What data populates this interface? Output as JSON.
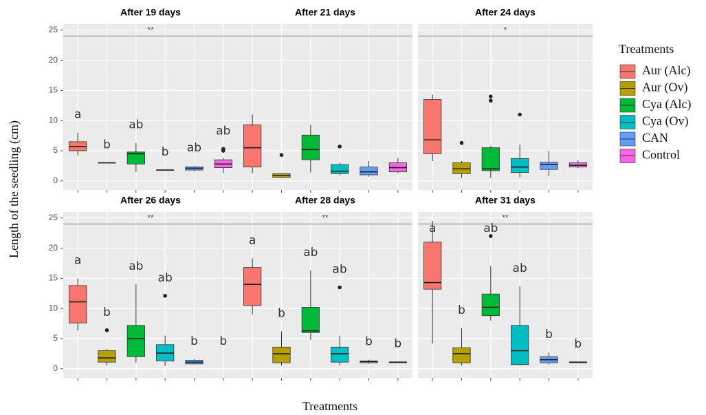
{
  "y_label": "Length of the seedling (cm)",
  "x_label": "Treatments",
  "legend": {
    "title": "Treatments",
    "items": [
      {
        "name": "Aur (Alc)",
        "color": "#f8766d"
      },
      {
        "name": "Aur (Ov)",
        "color": "#b79f00"
      },
      {
        "name": "Cya (Alc)",
        "color": "#00ba38"
      },
      {
        "name": "Cya (Ov)",
        "color": "#00bfc4"
      },
      {
        "name": "CAN",
        "color": "#619cff"
      },
      {
        "name": "Control",
        "color": "#f564e3"
      }
    ]
  },
  "chart_data": [
    {
      "type": "box",
      "title": "After 19 days",
      "significance": "**",
      "hline": 24,
      "ylim": [
        -1.5,
        26
      ],
      "yticks": [
        0,
        5,
        10,
        15,
        20,
        25
      ],
      "boxes": [
        {
          "min": 4.3,
          "q1": 5,
          "median": 5.7,
          "q3": 6.5,
          "max": 8,
          "outliers": [],
          "label": "a"
        },
        {
          "min": 3,
          "q1": 3,
          "median": 3,
          "q3": 3,
          "max": 3,
          "outliers": [],
          "label": "b"
        },
        {
          "min": 1.5,
          "q1": 2.8,
          "median": 4.5,
          "q3": 4.8,
          "max": 6.3,
          "outliers": [],
          "label": "ab"
        },
        {
          "min": 1.8,
          "q1": 1.8,
          "median": 1.8,
          "q3": 1.8,
          "max": 1.8,
          "outliers": [],
          "label": "b"
        },
        {
          "min": 1.6,
          "q1": 1.8,
          "median": 2.1,
          "q3": 2.3,
          "max": 2.5,
          "outliers": [],
          "label": "ab"
        },
        {
          "min": 1.3,
          "q1": 2.2,
          "median": 2.8,
          "q3": 3.5,
          "max": 3.8,
          "outliers": [
            5,
            5.3
          ],
          "label": "ab"
        }
      ]
    },
    {
      "type": "box",
      "title": "After 21 days",
      "hline": 24,
      "ylim": [
        -1.5,
        26
      ],
      "yticks": [
        0,
        5,
        10,
        15,
        20,
        25
      ],
      "boxes": [
        {
          "min": 1.3,
          "q1": 2.3,
          "median": 5.5,
          "q3": 9.3,
          "max": 11,
          "outliers": []
        },
        {
          "min": 0.5,
          "q1": 0.6,
          "median": 0.9,
          "q3": 1.2,
          "max": 1.3,
          "outliers": [
            4.3
          ]
        },
        {
          "min": 1.4,
          "q1": 3.5,
          "median": 5.2,
          "q3": 7.6,
          "max": 9.3,
          "outliers": []
        },
        {
          "min": 0.9,
          "q1": 1.2,
          "median": 1.6,
          "q3": 2.7,
          "max": 3,
          "outliers": [
            5.7
          ]
        },
        {
          "min": 0.7,
          "q1": 1,
          "median": 1.5,
          "q3": 2.3,
          "max": 3.3,
          "outliers": []
        },
        {
          "min": 1.3,
          "q1": 1.5,
          "median": 2.2,
          "q3": 3,
          "max": 3.8,
          "outliers": []
        }
      ]
    },
    {
      "type": "box",
      "title": "After 24 days",
      "significance": "*",
      "hline": 24,
      "ylim": [
        -1.5,
        26
      ],
      "yticks": [
        0,
        5,
        10,
        15,
        20,
        25
      ],
      "boxes": [
        {
          "min": 3.3,
          "q1": 4.5,
          "median": 6.8,
          "q3": 13.5,
          "max": 14.3,
          "outliers": []
        },
        {
          "min": 0.5,
          "q1": 1.2,
          "median": 2,
          "q3": 3,
          "max": 3.3,
          "outliers": [
            6.3
          ]
        },
        {
          "min": 0.5,
          "q1": 1.7,
          "median": 2,
          "q3": 5.5,
          "max": 5.8,
          "outliers": [
            13.3,
            14
          ]
        },
        {
          "min": 0.6,
          "q1": 1.4,
          "median": 2.3,
          "q3": 3.7,
          "max": 6,
          "outliers": [
            11
          ]
        },
        {
          "min": 0.8,
          "q1": 1.9,
          "median": 2.7,
          "q3": 3.1,
          "max": 5,
          "outliers": []
        },
        {
          "min": 2.1,
          "q1": 2.3,
          "median": 2.6,
          "q3": 3,
          "max": 3.4,
          "outliers": []
        }
      ]
    },
    {
      "type": "box",
      "title": "After 26 days",
      "significance": "**",
      "hline": 24,
      "ylim": [
        -1.5,
        26
      ],
      "yticks": [
        0,
        5,
        10,
        15,
        20,
        25
      ],
      "boxes": [
        {
          "min": 6.3,
          "q1": 7.6,
          "median": 11.1,
          "q3": 13.8,
          "max": 15,
          "outliers": [],
          "label": "a"
        },
        {
          "min": 0.5,
          "q1": 1.1,
          "median": 1.8,
          "q3": 3,
          "max": 3.3,
          "outliers": [
            6.4
          ],
          "label": "b"
        },
        {
          "min": 1,
          "q1": 2,
          "median": 5,
          "q3": 7.2,
          "max": 14,
          "outliers": [],
          "label": "ab"
        },
        {
          "min": 0.5,
          "q1": 1.3,
          "median": 2.6,
          "q3": 4,
          "max": 5.5,
          "outliers": [
            12.1
          ],
          "label": "ab"
        },
        {
          "min": 0.7,
          "q1": 0.8,
          "median": 1.1,
          "q3": 1.4,
          "max": 1.6,
          "outliers": [],
          "label": "b"
        },
        {
          "outliers": [],
          "label": "b"
        }
      ]
    },
    {
      "type": "box",
      "title": "After 28 days",
      "significance": "**",
      "hline": 24,
      "ylim": [
        -1.5,
        26
      ],
      "yticks": [
        0,
        5,
        10,
        15,
        20,
        25
      ],
      "boxes": [
        {
          "min": 9,
          "q1": 10.5,
          "median": 14,
          "q3": 16.8,
          "max": 18.3,
          "outliers": [],
          "label": "a"
        },
        {
          "min": 0.5,
          "q1": 1,
          "median": 2.5,
          "q3": 3.6,
          "max": 6.2,
          "outliers": [],
          "label": "b"
        },
        {
          "min": 4.8,
          "q1": 6,
          "median": 6.3,
          "q3": 10.2,
          "max": 16.3,
          "outliers": [],
          "label": "ab"
        },
        {
          "min": 0.5,
          "q1": 1.1,
          "median": 2.5,
          "q3": 3.6,
          "max": 5.5,
          "outliers": [
            13.5
          ],
          "label": "ab"
        },
        {
          "min": 0.8,
          "q1": 1,
          "median": 1.2,
          "q3": 1.3,
          "max": 1.5,
          "outliers": [],
          "label": "b"
        },
        {
          "min": 1,
          "q1": 1,
          "median": 1.1,
          "q3": 1.1,
          "max": 1.2,
          "outliers": [],
          "label": "b"
        }
      ]
    },
    {
      "type": "box",
      "title": "After 31 days",
      "significance": "**",
      "hline": 24,
      "ylim": [
        -1.5,
        26
      ],
      "yticks": [
        0,
        5,
        10,
        15,
        20,
        25
      ],
      "boxes": [
        {
          "min": 4.2,
          "q1": 13.2,
          "median": 14.3,
          "q3": 21,
          "max": 24.5,
          "outliers": [],
          "label": "a"
        },
        {
          "min": 0.5,
          "q1": 1,
          "median": 2.5,
          "q3": 3.5,
          "max": 6.7,
          "outliers": [],
          "label": "b"
        },
        {
          "min": 8,
          "q1": 8.8,
          "median": 10.2,
          "q3": 12.4,
          "max": 17,
          "outliers": [
            22
          ],
          "label": "ab"
        },
        {
          "min": 0.5,
          "q1": 0.7,
          "median": 3,
          "q3": 7.2,
          "max": 13.7,
          "outliers": [],
          "label": "ab"
        },
        {
          "min": 0.7,
          "q1": 1,
          "median": 1.5,
          "q3": 2,
          "max": 2.7,
          "outliers": [],
          "label": "b"
        },
        {
          "min": 1,
          "q1": 1,
          "median": 1.1,
          "q3": 1.1,
          "max": 1.1,
          "outliers": [],
          "label": "b"
        }
      ]
    }
  ]
}
